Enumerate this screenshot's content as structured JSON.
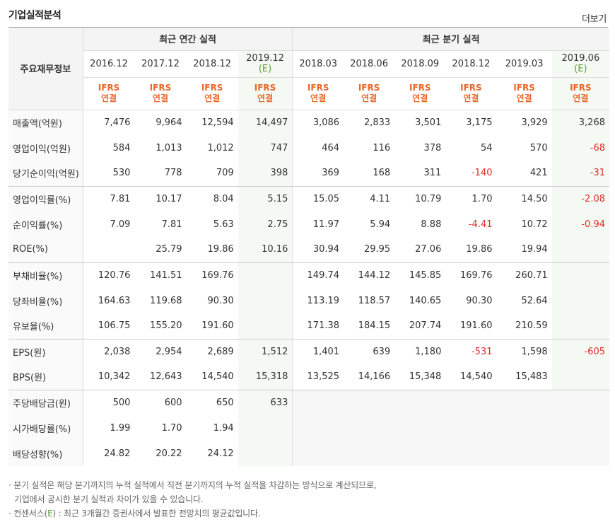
{
  "header": {
    "title": "기업실적분석",
    "more": "더보기"
  },
  "table": {
    "corner": "주요재무정보",
    "annual_group": "최근 연간 실적",
    "quarter_group": "최근 분기 실적",
    "periods": [
      {
        "label": "2016.12",
        "est": ""
      },
      {
        "label": "2017.12",
        "est": ""
      },
      {
        "label": "2018.12",
        "est": ""
      },
      {
        "label": "2019.12",
        "est": "(E)"
      },
      {
        "label": "2018.03",
        "est": ""
      },
      {
        "label": "2018.06",
        "est": ""
      },
      {
        "label": "2018.09",
        "est": ""
      },
      {
        "label": "2018.12",
        "est": ""
      },
      {
        "label": "2019.03",
        "est": ""
      },
      {
        "label": "2019.06",
        "est": "(E)"
      }
    ],
    "ifrs": "IFRS",
    "consol": "연결",
    "rows": [
      {
        "label": "매출액(억원)",
        "values": [
          "7,476",
          "9,964",
          "12,594",
          "14,497",
          "3,086",
          "2,833",
          "3,501",
          "3,175",
          "3,929",
          "3,268"
        ]
      },
      {
        "label": "영업이익(억원)",
        "values": [
          "584",
          "1,013",
          "1,012",
          "747",
          "464",
          "116",
          "378",
          "54",
          "570",
          "-68"
        ]
      },
      {
        "label": "당기순이익(억원)",
        "values": [
          "530",
          "778",
          "709",
          "398",
          "369",
          "168",
          "311",
          "-140",
          "421",
          "-31"
        ]
      },
      {
        "label": "영업이익률(%)",
        "values": [
          "7.81",
          "10.17",
          "8.04",
          "5.15",
          "15.05",
          "4.11",
          "10.79",
          "1.70",
          "14.50",
          "-2.08"
        ]
      },
      {
        "label": "순이익률(%)",
        "values": [
          "7.09",
          "7.81",
          "5.63",
          "2.75",
          "11.97",
          "5.94",
          "8.88",
          "-4.41",
          "10.72",
          "-0.94"
        ]
      },
      {
        "label": "ROE(%)",
        "values": [
          "",
          "25.79",
          "19.86",
          "10.16",
          "30.94",
          "29.95",
          "27.06",
          "19.86",
          "19.94",
          ""
        ]
      },
      {
        "label": "부채비율(%)",
        "values": [
          "120.76",
          "141.51",
          "169.76",
          "",
          "149.74",
          "144.12",
          "145.85",
          "169.76",
          "260.71",
          ""
        ]
      },
      {
        "label": "당좌비율(%)",
        "values": [
          "164.63",
          "119.68",
          "90.30",
          "",
          "113.19",
          "118.57",
          "140.65",
          "90.30",
          "52.64",
          ""
        ]
      },
      {
        "label": "유보율(%)",
        "values": [
          "106.75",
          "155.20",
          "191.60",
          "",
          "171.38",
          "184.15",
          "207.74",
          "191.60",
          "210.59",
          ""
        ]
      },
      {
        "label": "EPS(원)",
        "values": [
          "2,038",
          "2,954",
          "2,689",
          "1,512",
          "1,401",
          "639",
          "1,180",
          "-531",
          "1,598",
          "-605"
        ]
      },
      {
        "label": "BPS(원)",
        "values": [
          "10,342",
          "12,643",
          "14,540",
          "15,318",
          "13,525",
          "14,166",
          "15,348",
          "14,540",
          "15,483",
          ""
        ]
      },
      {
        "label": "주당배당금(원)",
        "values": [
          "500",
          "600",
          "650",
          "633",
          "",
          "",
          "",
          "",
          "",
          ""
        ]
      },
      {
        "label": "시가배당률(%)",
        "values": [
          "1.99",
          "1.70",
          "1.94",
          "",
          "",
          "",
          "",
          "",
          "",
          ""
        ]
      },
      {
        "label": "배당성향(%)",
        "values": [
          "24.82",
          "20.22",
          "24.12",
          "",
          "",
          "",
          "",
          "",
          "",
          ""
        ]
      }
    ]
  },
  "notes": {
    "line1": "분기 실적은 해당 분기까지의 누적 실적에서 직전 분기까지의 누적 실적을 차감하는 방식으로 계산되므로,",
    "line2": "기업에서 공시한 분기 실적과 차이가 있을 수 있습니다.",
    "line3a": "컨센서스(",
    "line3e": "E",
    "line3b": ") : 최근 3개월간 증권사에서 발표한 전망치의 평균값입니다."
  },
  "colors": {
    "negative": "#e12a2a",
    "ifrs": "#e8672a",
    "estimate": "#5a9a38"
  }
}
